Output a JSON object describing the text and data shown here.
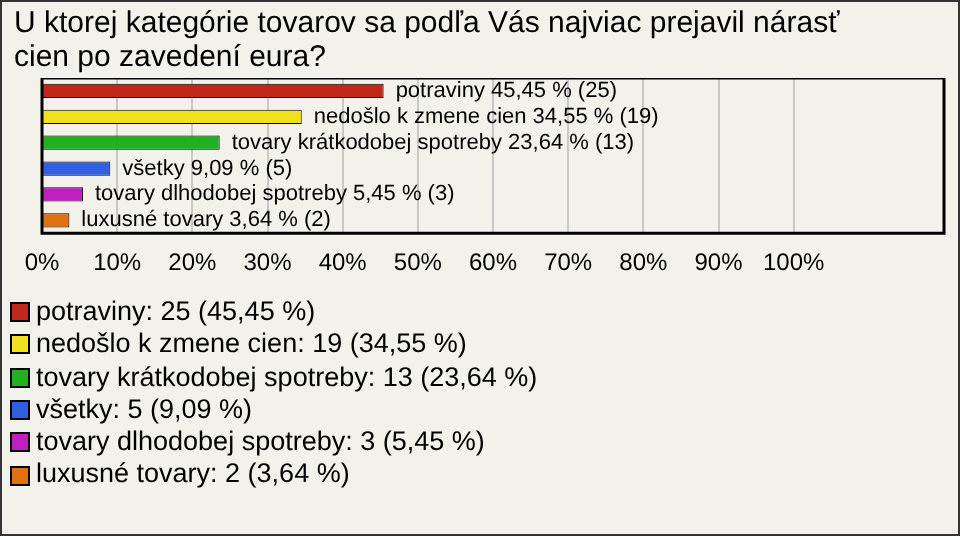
{
  "chart_data": {
    "type": "bar",
    "orientation": "horizontal",
    "title": "U ktorej kategórie tovarov sa podľa Vás najviac prejavil nárasť cien po zavedení eura?",
    "categories": [
      null,
      null,
      null,
      null,
      null,
      null
    ],
    "values": [
      45.45,
      34.55,
      23.64,
      9.09,
      5.45,
      3.64
    ],
    "colors": [
      "#c0281c",
      "#f0e020",
      "#20b020",
      "#3060e0",
      "#c020c0",
      "#e07010"
    ],
    "value_labels": [
      "potraviny 45,45 % (25)",
      "nedošlo k zmene cien 34,55 % (19)",
      "tovary krátkodobej spotreby 23,64 % (13)",
      "všetky 9,09 % (5)",
      "tovary dlhodobej spotreby 5,45 % (3)",
      "luxusné tovary 3,64 % (2)"
    ],
    "xlim": [
      0,
      120
    ],
    "xticks": [
      {
        "value": 0,
        "label": "0%"
      },
      {
        "value": 10,
        "label": "10%"
      },
      {
        "value": 20,
        "label": "20%"
      },
      {
        "value": 30,
        "label": "30%"
      },
      {
        "value": 40,
        "label": "40%"
      },
      {
        "value": 50,
        "label": "50%"
      },
      {
        "value": 60,
        "label": "60%"
      },
      {
        "value": 70,
        "label": "70%"
      },
      {
        "value": 80,
        "label": "80%"
      },
      {
        "value": 90,
        "label": "90%"
      },
      {
        "value": 100,
        "label": "100%"
      }
    ],
    "grid": "x",
    "tick_labels": "x",
    "annotations": [
      "potraviny: 25 (45,45 %)",
      "nedošlo k zmene cien: 19 (34,55 %)",
      "tovary krátkodobej spotreby: 13 (23,64 %)",
      "všetky: 5 (9,09 %)",
      "tovary dlhodobej spotreby: 3 (5,45 %)",
      "luxusné tovary: 2 (3,64 %)"
    ]
  }
}
